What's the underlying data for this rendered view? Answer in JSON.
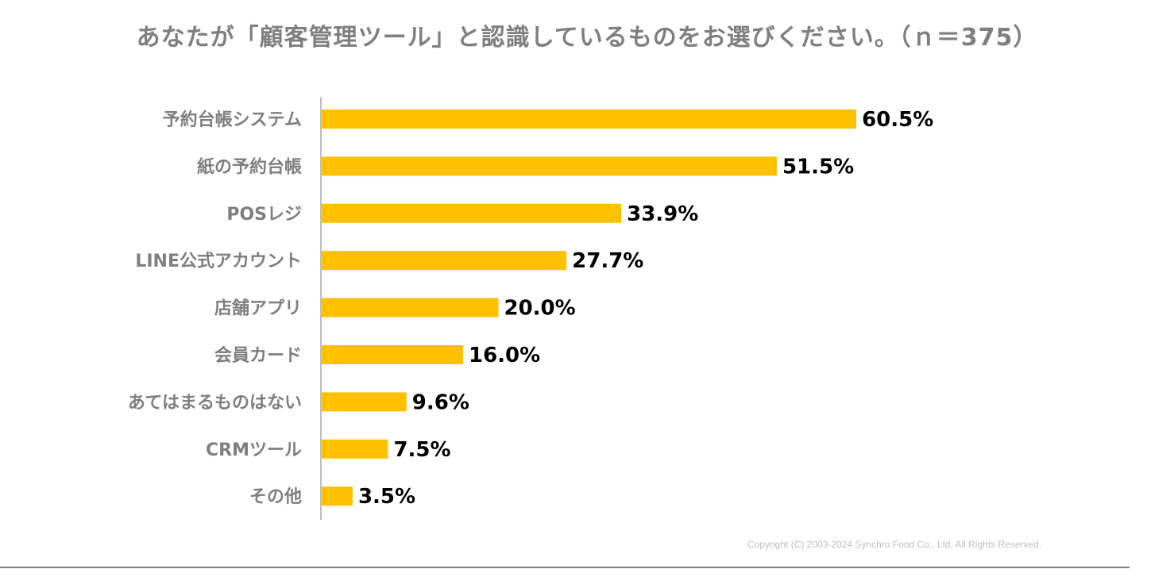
{
  "chart_data": {
    "type": "bar",
    "orientation": "horizontal",
    "title": "あなたが「顧客管理ツール」と認識しているものをお選びください。（ｎ＝375）",
    "categories": [
      "予約台帳システム",
      "紙の予約台帳",
      "POSレジ",
      "LINE公式アカウント",
      "店舗アプリ",
      "会員カード",
      "あてはまるものはない",
      "CRMツール",
      "その他"
    ],
    "values": [
      60.5,
      51.5,
      33.9,
      27.7,
      20.0,
      16.0,
      9.6,
      7.5,
      3.5
    ],
    "value_labels": [
      "60.5%",
      "51.5%",
      "33.9%",
      "27.7%",
      "20.0%",
      "16.0%",
      "9.6%",
      "7.5%",
      "3.5%"
    ],
    "unit": "%",
    "xlim": [
      0,
      100
    ],
    "xlabel": "",
    "ylabel": "",
    "grid": false,
    "bar_color": "#ffc000"
  },
  "footer": {
    "copyright": "Copyright (C) 2003-2024   Synchro Food Co., Ltd. All Rights Reserved."
  }
}
